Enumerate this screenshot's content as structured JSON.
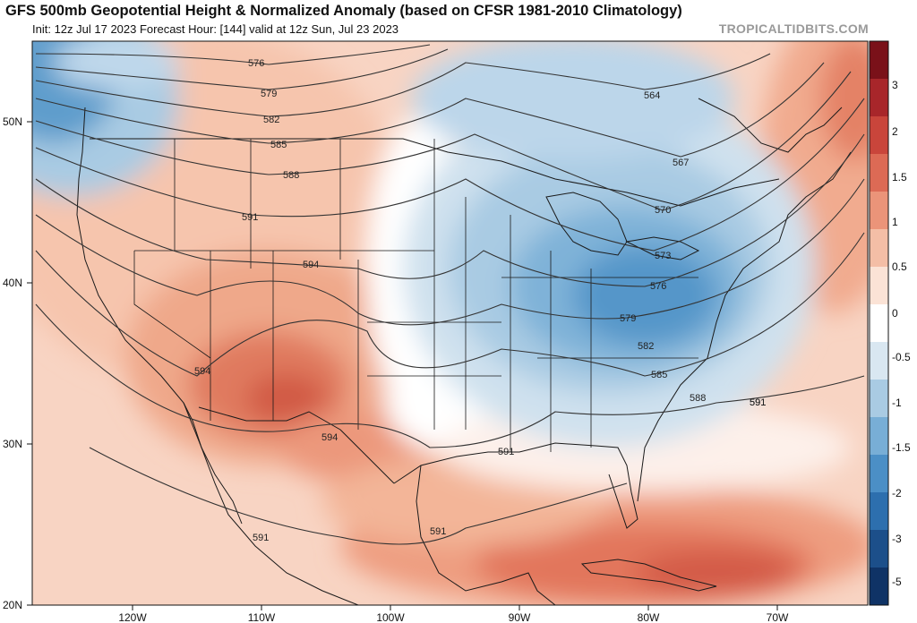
{
  "header": {
    "title": "GFS 500mb Geopotential Height & Normalized Anomaly (based on CFSR 1981-2010 Climatology)",
    "subtitle": "Init: 12z Jul 17 2023   Forecast Hour: [144]   valid at 12z Sun, Jul 23 2023",
    "brand": "TROPICALTIDBITS.COM"
  },
  "axes": {
    "lat_labels": [
      "50N",
      "40N",
      "30N",
      "20N"
    ],
    "lon_labels": [
      "120W",
      "110W",
      "100W",
      "90W",
      "80W",
      "70W"
    ]
  },
  "colorbar": {
    "labels": [
      "3",
      "2",
      "1.5",
      "1",
      "0.5",
      "0",
      "-0.5",
      "-1",
      "-1.5",
      "-2",
      "-3",
      "-5"
    ],
    "colors": [
      "#7a1119",
      "#a8262a",
      "#c9453b",
      "#dc6a55",
      "#eb9479",
      "#f4bea6",
      "#fbe3d6",
      "#ffffff",
      "#d9e7f1",
      "#a9cbe3",
      "#78aed6",
      "#4b8fc6",
      "#2d6fae",
      "#1c4f8a",
      "#0f3366"
    ]
  },
  "contour_labels": [
    {
      "text": "576"
    },
    {
      "text": "579"
    },
    {
      "text": "582"
    },
    {
      "text": "585"
    },
    {
      "text": "588"
    },
    {
      "text": "591"
    },
    {
      "text": "594"
    },
    {
      "text": "594"
    },
    {
      "text": "594"
    },
    {
      "text": "591"
    },
    {
      "text": "591"
    },
    {
      "text": "591"
    },
    {
      "text": "591"
    },
    {
      "text": "564"
    },
    {
      "text": "567"
    },
    {
      "text": "570"
    },
    {
      "text": "573"
    },
    {
      "text": "576"
    },
    {
      "text": "579"
    },
    {
      "text": "582"
    },
    {
      "text": "585"
    },
    {
      "text": "588"
    },
    {
      "text": "591"
    }
  ]
}
